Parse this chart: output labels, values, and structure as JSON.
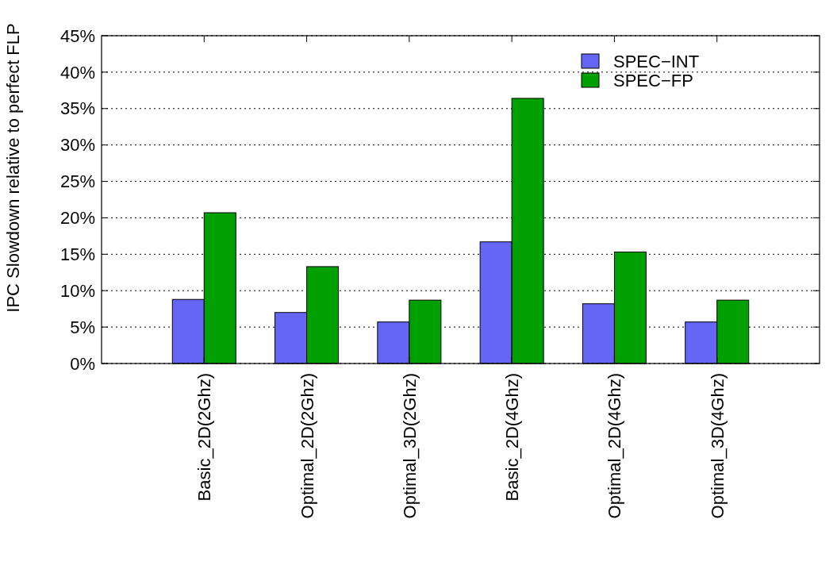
{
  "chart_data": {
    "type": "bar",
    "ylabel": "IPC Slowdown relative to perfect FLP",
    "categories": [
      "Basic_2D(2Ghz)",
      "Optimal_2D(2Ghz)",
      "Optimal_3D(2Ghz)",
      "Basic_2D(4Ghz)",
      "Optimal_2D(4Ghz)",
      "Optimal_3D(4Ghz)"
    ],
    "series": [
      {
        "name": "SPEC−INT",
        "color": "#6666f5",
        "values": [
          8.8,
          7.0,
          5.7,
          16.7,
          8.2,
          5.7
        ]
      },
      {
        "name": "SPEC−FP",
        "color": "#00a000",
        "values": [
          20.7,
          13.3,
          8.7,
          36.4,
          15.3,
          8.7
        ]
      }
    ],
    "ylim": [
      0,
      45
    ],
    "yticks": [
      {
        "value": 0,
        "label": "0%"
      },
      {
        "value": 5,
        "label": "5%"
      },
      {
        "value": 10,
        "label": "10%"
      },
      {
        "value": 15,
        "label": "15%"
      },
      {
        "value": 20,
        "label": "20%"
      },
      {
        "value": 25,
        "label": "25%"
      },
      {
        "value": 30,
        "label": "30%"
      },
      {
        "value": 35,
        "label": "35%"
      },
      {
        "value": 40,
        "label": "40%"
      },
      {
        "value": 45,
        "label": "45%"
      }
    ],
    "grid": "y",
    "legend": "top right"
  }
}
